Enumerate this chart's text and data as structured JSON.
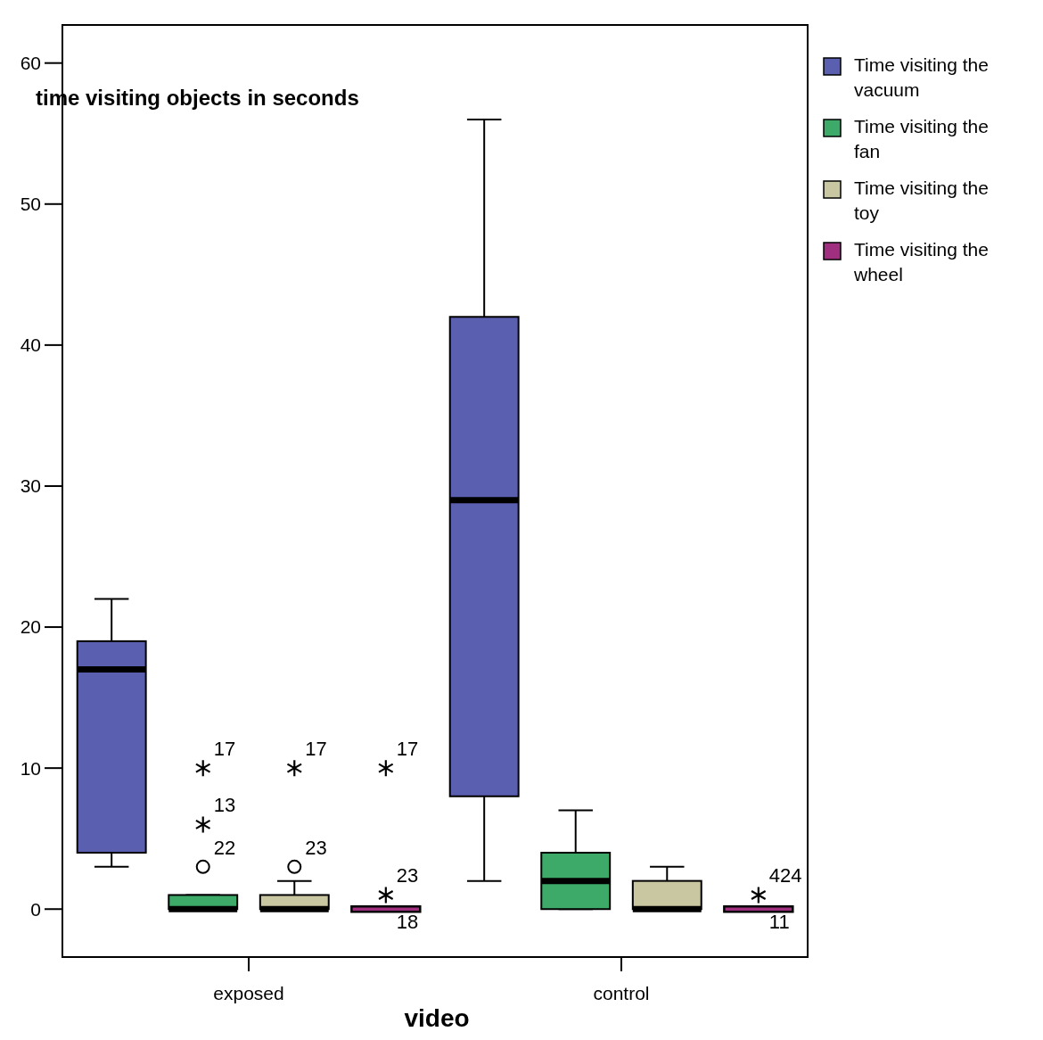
{
  "chart_data": {
    "type": "box",
    "ylabel": "time visiting objects in seconds",
    "xlabel": "video",
    "categories": [
      "exposed",
      "control"
    ],
    "ylim": [
      -3.4,
      62.7
    ],
    "yticks": [
      0,
      10,
      20,
      30,
      40,
      50,
      60
    ],
    "grid": false,
    "legend": "top right",
    "series": [
      {
        "name": "Time visiting the vacuum",
        "color": "#5a5fb0",
        "boxes": [
          {
            "low": 3,
            "q1": 4,
            "median": 17,
            "q3": 19,
            "high": 22
          },
          {
            "low": 2,
            "q1": 8,
            "median": 29,
            "q3": 42,
            "high": 56
          }
        ]
      },
      {
        "name": "Time visiting the fan",
        "color": "#3daa6a",
        "boxes": [
          {
            "low": 0,
            "q1": 0,
            "median": 0,
            "q3": 1,
            "high": 1,
            "outliers": [
              3,
              6,
              10
            ]
          },
          {
            "low": 0,
            "q1": 0,
            "median": 2,
            "q3": 4,
            "high": 7
          }
        ]
      },
      {
        "name": "Time visiting the toy",
        "color": "#c9c7a2",
        "boxes": [
          {
            "low": 0,
            "q1": 0,
            "median": 0,
            "q3": 1,
            "high": 2,
            "outliers": [
              3,
              10
            ]
          },
          {
            "low": 0,
            "q1": 0,
            "median": 0,
            "q3": 2,
            "high": 3
          }
        ]
      },
      {
        "name": "Time visiting the wheel",
        "color": "#a0307f",
        "boxes": [
          {
            "low": 0,
            "q1": 0,
            "median": 0,
            "q3": 0,
            "high": 0,
            "outliers": [
              1,
              10
            ]
          },
          {
            "low": 0,
            "q1": 0,
            "median": 0,
            "q3": 0,
            "high": 0,
            "outliers": [
              1
            ]
          }
        ]
      }
    ],
    "annotations": [
      "22",
      "13",
      "17",
      "23",
      "17",
      "23",
      "17",
      "424",
      "18",
      "11"
    ]
  }
}
